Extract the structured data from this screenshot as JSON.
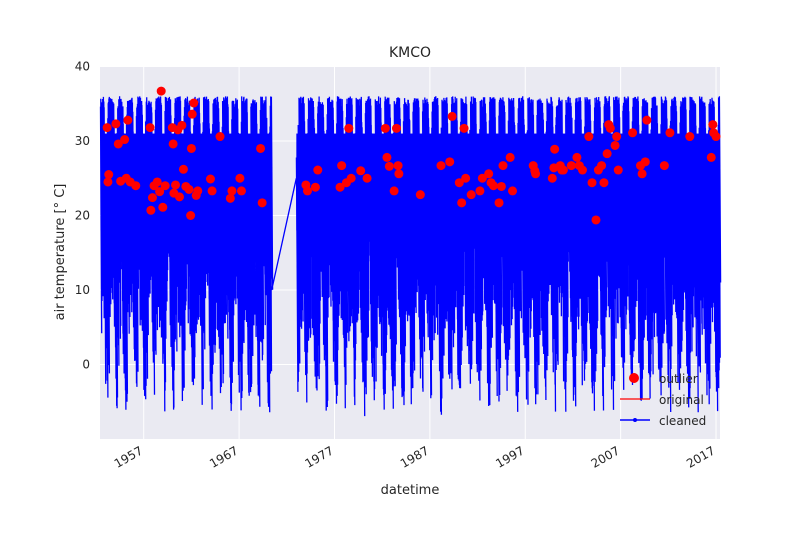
{
  "chart_data": {
    "type": "line",
    "title": "KMCO",
    "xlabel": "datetime",
    "ylabel": "air temperature [° C]",
    "xlim": [
      "1952-06-01",
      "2017-06-01"
    ],
    "ylim": [
      -10,
      40
    ],
    "x_ticks": [
      "1957",
      "1967",
      "1977",
      "1987",
      "1997",
      "2007",
      "2017"
    ],
    "y_ticks": [
      0,
      10,
      20,
      30,
      40
    ],
    "grid": true,
    "legend_position": "lower-right",
    "gap": [
      "1970-06-01",
      "1973-01-01"
    ],
    "series": [
      {
        "name": "cleaned",
        "color": "#0000ff",
        "marker": "point",
        "note_values": "hourly temperatures; annual envelope (approx.)",
        "yearly_max_approx": 36,
        "yearly_min_range_approx": [
          -7,
          6
        ]
      },
      {
        "name": "original",
        "color": "#ff0000"
      },
      {
        "name": "outlier",
        "color": "#ff0000",
        "marker": "circle",
        "points": [
          [
            "1953-03-01",
            31.8
          ],
          [
            "1953-04-01",
            24.5
          ],
          [
            "1953-05-01",
            25.5
          ],
          [
            "1954-02-01",
            32.3
          ],
          [
            "1954-05-01",
            29.6
          ],
          [
            "1954-08-01",
            24.6
          ],
          [
            "1955-01-01",
            30.2
          ],
          [
            "1955-03-01",
            25.0
          ],
          [
            "1955-05-01",
            32.8
          ],
          [
            "1955-08-01",
            24.5
          ],
          [
            "1956-03-01",
            24.0
          ],
          [
            "1957-09-01",
            31.8
          ],
          [
            "1957-10-01",
            20.7
          ],
          [
            "1957-12-01",
            22.4
          ],
          [
            "1958-02-01",
            24.0
          ],
          [
            "1958-06-01",
            24.5
          ],
          [
            "1958-09-01",
            23.2
          ],
          [
            "1958-11-01",
            36.7
          ],
          [
            "1959-01-01",
            21.1
          ],
          [
            "1959-04-01",
            24.0
          ],
          [
            "1960-01-01",
            31.8
          ],
          [
            "1960-02-01",
            29.6
          ],
          [
            "1960-03-01",
            23.0
          ],
          [
            "1960-05-01",
            24.1
          ],
          [
            "1960-08-01",
            31.5
          ],
          [
            "1960-10-01",
            22.5
          ],
          [
            "1961-01-01",
            32.1
          ],
          [
            "1961-03-01",
            26.2
          ],
          [
            "1961-06-01",
            23.9
          ],
          [
            "1961-10-01",
            23.5
          ],
          [
            "1961-12-01",
            20.0
          ],
          [
            "1962-01-01",
            29.0
          ],
          [
            "1962-02-01",
            33.6
          ],
          [
            "1962-04-01",
            35.1
          ],
          [
            "1962-07-01",
            22.7
          ],
          [
            "1962-09-01",
            23.3
          ],
          [
            "1964-01-01",
            24.9
          ],
          [
            "1964-03-01",
            23.3
          ],
          [
            "1965-01-01",
            30.6
          ],
          [
            "1966-02-01",
            22.3
          ],
          [
            "1966-04-01",
            23.3
          ],
          [
            "1967-02-01",
            25.0
          ],
          [
            "1967-04-01",
            23.3
          ],
          [
            "1969-04-01",
            29.0
          ],
          [
            "1969-06-01",
            21.7
          ],
          [
            "1974-01-01",
            24.1
          ],
          [
            "1974-03-01",
            23.3
          ],
          [
            "1975-01-01",
            23.8
          ],
          [
            "1975-04-01",
            26.1
          ],
          [
            "1977-08-01",
            23.8
          ],
          [
            "1977-10-01",
            26.7
          ],
          [
            "1978-04-01",
            24.4
          ],
          [
            "1978-07-01",
            31.7
          ],
          [
            "1978-10-01",
            25.0
          ],
          [
            "1979-10-01",
            26.0
          ],
          [
            "1980-06-01",
            25.0
          ],
          [
            "1982-05-01",
            31.7
          ],
          [
            "1982-07-01",
            27.8
          ],
          [
            "1982-10-01",
            26.6
          ],
          [
            "1983-04-01",
            23.3
          ],
          [
            "1983-07-01",
            31.7
          ],
          [
            "1983-09-01",
            26.7
          ],
          [
            "1983-10-01",
            25.6
          ],
          [
            "1986-01-01",
            22.8
          ],
          [
            "1988-03-01",
            26.7
          ],
          [
            "1989-02-01",
            27.2
          ],
          [
            "1989-05-01",
            33.3
          ],
          [
            "1990-02-01",
            24.4
          ],
          [
            "1990-05-01",
            21.7
          ],
          [
            "1990-08-01",
            31.7
          ],
          [
            "1990-10-01",
            25.0
          ],
          [
            "1991-05-01",
            22.8
          ],
          [
            "1992-04-01",
            23.3
          ],
          [
            "1992-07-01",
            25.0
          ],
          [
            "1993-03-01",
            25.6
          ],
          [
            "1993-06-01",
            24.4
          ],
          [
            "1993-09-01",
            24.0
          ],
          [
            "1994-04-01",
            21.7
          ],
          [
            "1994-07-01",
            23.9
          ],
          [
            "1994-09-01",
            26.7
          ],
          [
            "1995-06-01",
            27.8
          ],
          [
            "1995-09-01",
            23.3
          ],
          [
            "1997-11-01",
            26.7
          ],
          [
            "1998-01-01",
            26.0
          ],
          [
            "1998-02-01",
            25.6
          ],
          [
            "1999-11-01",
            25.0
          ],
          [
            "2000-01-01",
            26.4
          ],
          [
            "2000-02-01",
            28.9
          ],
          [
            "2000-09-01",
            26.7
          ],
          [
            "2000-11-01",
            26.1
          ],
          [
            "2001-01-01",
            26.1
          ],
          [
            "2001-11-01",
            26.7
          ],
          [
            "2002-06-01",
            27.8
          ],
          [
            "2002-09-01",
            26.7
          ],
          [
            "2003-01-01",
            26.1
          ],
          [
            "2003-09-01",
            30.6
          ],
          [
            "2004-01-01",
            24.4
          ],
          [
            "2004-06-01",
            19.4
          ],
          [
            "2004-09-01",
            26.1
          ],
          [
            "2005-01-01",
            26.7
          ],
          [
            "2005-04-01",
            24.4
          ],
          [
            "2005-08-01",
            28.3
          ],
          [
            "2005-10-01",
            32.2
          ],
          [
            "2005-12-01",
            31.7
          ],
          [
            "2006-06-01",
            29.4
          ],
          [
            "2006-08-01",
            30.6
          ],
          [
            "2006-10-01",
            26.1
          ],
          [
            "2008-04-01",
            31.1
          ],
          [
            "2009-02-01",
            26.7
          ],
          [
            "2009-04-01",
            25.6
          ],
          [
            "2009-08-01",
            27.2
          ],
          [
            "2009-10-01",
            32.8
          ],
          [
            "2011-08-01",
            26.7
          ],
          [
            "2012-03-01",
            31.1
          ],
          [
            "2014-04-01",
            30.6
          ],
          [
            "2016-07-01",
            27.8
          ],
          [
            "2016-09-01",
            32.2
          ],
          [
            "2016-10-01",
            31.1
          ],
          [
            "2017-01-01",
            30.6
          ]
        ]
      }
    ],
    "legend": [
      "outlier",
      "original",
      "cleaned"
    ]
  }
}
